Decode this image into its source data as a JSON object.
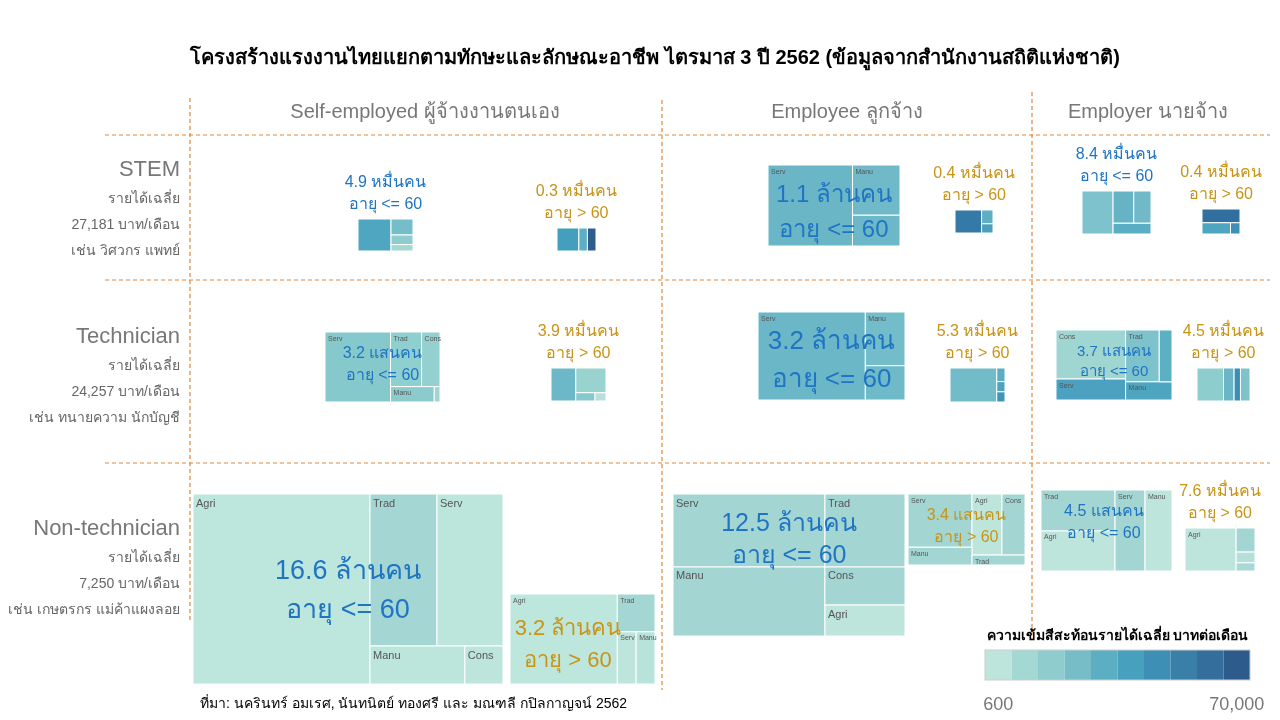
{
  "chart_data": [
    {
      "type": "other",
      "title": "โครงสร้างแรงงานไทยแยกตามทักษะและลักษณะอาชีพ ไตรมาส 3 ปี 2562 (ข้อมูลจากสำนักงานสถิติแห่งชาติ)",
      "categories": [
        "Self-employed ผู้จ้างงานตนเอง",
        "Employee ลูกจ้าง",
        "Employer นายจ้าง"
      ],
      "y_categories": [
        "STEM",
        "Technician",
        "Non-technician"
      ],
      "annotations": [
        "รายได้เฉลี่ย",
        "27,181 บาท/เดือน",
        "เช่น วิศวกร แพทย์",
        "รายได้เฉลี่ย",
        "24,257 บาท/เดือน",
        "เช่น ทนายความ นักบัญชี",
        "รายได้เฉลี่ย",
        "7,250 บาท/เดือน",
        "เช่น เกษตรกร แม่ค้าแผงลอย",
        "ที่มา: นครินทร์ อมเรศ, นันทนิตย์ ทองศรี และ มณฑลี กปิลกาญจน์ 2562",
        "600",
        "70,000"
      ],
      "clabel": "ความเข้มสีสะท้อนรายได้เฉลี่ย บาทต่อเดือน",
      "colors": [
        "#bde5dc",
        "#a4d8d3",
        "#8ecccd",
        "#76bdc8",
        "#5caec3",
        "#46a0be",
        "#3d8fb5",
        "#3a7fa8",
        "#346e9c",
        "#2c5b8c"
      ]
    },
    {
      "type": "other",
      "values": [
        4.9
      ],
      "value_labels": [
        "4.9 หมื่นคน"
      ],
      "subtitle": "อายุ <= 60"
    },
    {
      "type": "other",
      "values": [
        0.3
      ],
      "value_labels": [
        "0.3 หมื่นคน"
      ],
      "subtitle": "อายุ > 60"
    },
    {
      "type": "other",
      "values": [
        1.1
      ],
      "value_labels": [
        "1.1 ล้านคน"
      ],
      "subtitle": "อายุ <= 60",
      "annotations": [
        "Serv",
        "Manu"
      ]
    },
    {
      "type": "other",
      "values": [
        0.4
      ],
      "value_labels": [
        "0.4 หมื่นคน"
      ],
      "subtitle": "อายุ > 60"
    },
    {
      "type": "other",
      "values": [
        8.4
      ],
      "value_labels": [
        "8.4 หมื่นคน"
      ],
      "subtitle": "อายุ <= 60"
    },
    {
      "type": "other",
      "values": [
        0.4
      ],
      "value_labels": [
        "0.4 หมื่นคน"
      ],
      "subtitle": "อายุ > 60"
    },
    {
      "type": "other",
      "values": [
        3.2
      ],
      "value_labels": [
        "3.2 แสนคน"
      ],
      "subtitle": "อายุ <= 60",
      "annotations": [
        "Serv",
        "Trad",
        "Cons",
        "Manu"
      ]
    },
    {
      "type": "other",
      "values": [
        3.9
      ],
      "value_labels": [
        "3.9 หมื่นคน"
      ],
      "subtitle": "อายุ > 60"
    },
    {
      "type": "other",
      "values": [
        3.2
      ],
      "value_labels": [
        "3.2 ล้านคน"
      ],
      "subtitle": "อายุ <= 60",
      "annotations": [
        "Serv",
        "Manu"
      ]
    },
    {
      "type": "other",
      "values": [
        5.3
      ],
      "value_labels": [
        "5.3 หมื่นคน"
      ],
      "subtitle": "อายุ > 60"
    },
    {
      "type": "other",
      "values": [
        3.7
      ],
      "value_labels": [
        "3.7 แสนคน"
      ],
      "subtitle": "อายุ <= 60",
      "annotations": [
        "Cons",
        "Serv",
        "Trad",
        "Manu"
      ]
    },
    {
      "type": "other",
      "values": [
        4.5
      ],
      "value_labels": [
        "4.5 หมื่นคน"
      ],
      "subtitle": "อายุ > 60"
    },
    {
      "type": "other",
      "values": [
        16.6
      ],
      "value_labels": [
        "16.6 ล้านคน"
      ],
      "subtitle": "อายุ <= 60",
      "annotations": [
        "Agri",
        "Trad",
        "Serv",
        "Manu",
        "Cons"
      ]
    },
    {
      "type": "other",
      "values": [
        3.2
      ],
      "value_labels": [
        "3.2 ล้านคน"
      ],
      "subtitle": "อายุ > 60",
      "annotations": [
        "Agri",
        "Trad",
        "Serv",
        "Manu"
      ]
    },
    {
      "type": "other",
      "values": [
        12.5
      ],
      "value_labels": [
        "12.5 ล้านคน"
      ],
      "subtitle": "อายุ <= 60",
      "annotations": [
        "Serv",
        "Manu",
        "Trad",
        "Cons",
        "Agri"
      ]
    },
    {
      "type": "other",
      "values": [
        3.4
      ],
      "value_labels": [
        "3.4 แสนคน"
      ],
      "subtitle": "อายุ > 60",
      "annotations": [
        "Serv",
        "Agri",
        "Manu",
        "Cons",
        "Trad"
      ]
    },
    {
      "type": "other",
      "values": [
        4.5
      ],
      "value_labels": [
        "4.5 แสนคน"
      ],
      "subtitle": "อายุ <= 60",
      "annotations": [
        "Trad",
        "Agri",
        "Serv",
        "Manu"
      ]
    },
    {
      "type": "other",
      "values": [
        7.6
      ],
      "value_labels": [
        "7.6 หมื่นคน"
      ],
      "subtitle": "อายุ > 60",
      "annotations": [
        "Agri"
      ]
    }
  ]
}
